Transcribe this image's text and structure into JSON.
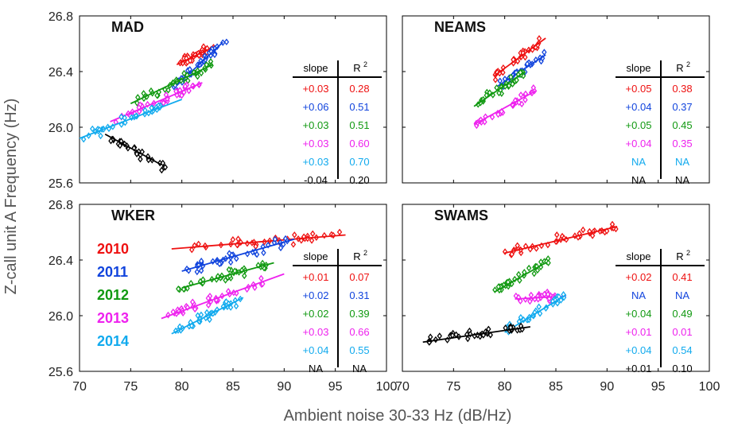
{
  "chart_data": {
    "type": "scatter",
    "xlabel": "Ambient noise 30-33 Hz (dB/Hz)",
    "ylabel": "Z-call unit A Frequency (Hz)",
    "xlim": [
      70,
      100
    ],
    "ylim": [
      25.6,
      26.8
    ],
    "xticks": [
      70,
      75,
      80,
      85,
      90,
      95,
      100
    ],
    "yticks": [
      25.6,
      26.0,
      26.4,
      26.8
    ],
    "xtick_labels": [
      "70",
      "75",
      "80",
      "85",
      "90",
      "95",
      "100"
    ],
    "ytick_labels": [
      "25.6",
      "26.0",
      "26.4",
      "26.8"
    ],
    "grid": false,
    "marker": "diamond",
    "legend": {
      "placement": "left, inside WKER panel",
      "entries": [
        "2010",
        "2011",
        "2012",
        "2013",
        "2014"
      ]
    },
    "table_headers": {
      "slope": "slope",
      "r2": "R",
      "r2_sup": "2"
    },
    "colors": {
      "2010": "#ee1111",
      "2011": "#1144dd",
      "2012": "#119911",
      "2013": "#ee22ee",
      "2014": "#11aaee",
      "2015": "#000000"
    },
    "panels": [
      {
        "title": "MAD",
        "stats": [
          {
            "slope": "+0.03",
            "r2": "0.28"
          },
          {
            "slope": "+0.06",
            "r2": "0.51"
          },
          {
            "slope": "+0.03",
            "r2": "0.51"
          },
          {
            "slope": "+0.03",
            "r2": "0.60"
          },
          {
            "slope": "+0.03",
            "r2": "0.70"
          },
          {
            "slope": "-0.04",
            "r2": "0.20"
          }
        ],
        "series": [
          {
            "key": "2010",
            "fit_x": [
              79.5,
              83.2
            ],
            "fit_y": [
              26.45,
              26.58
            ],
            "x_range": [
              79.5,
              83.2
            ],
            "center_y": 26.52,
            "n": 36
          },
          {
            "key": "2011",
            "fit_x": [
              79.5,
              84.0
            ],
            "fit_y": [
              26.3,
              26.61
            ],
            "x_range": [
              79.0,
              84.5
            ],
            "center_y": 26.44,
            "n": 36
          },
          {
            "key": "2012",
            "fit_x": [
              75.0,
              83.0
            ],
            "fit_y": [
              26.17,
              26.45
            ],
            "x_range": [
              75.5,
              83.0
            ],
            "center_y": 26.3,
            "n": 36
          },
          {
            "key": "2013",
            "fit_x": [
              73.0,
              82.0
            ],
            "fit_y": [
              26.04,
              26.32
            ],
            "x_range": [
              73.5,
              82.0
            ],
            "center_y": 26.18,
            "n": 36
          },
          {
            "key": "2014",
            "fit_x": [
              70.0,
              80.0
            ],
            "fit_y": [
              25.92,
              26.2
            ],
            "x_range": [
              70.2,
              78.0
            ],
            "center_y": 25.98,
            "n": 36
          },
          {
            "key": "2015",
            "fit_x": [
              72.5,
              78.0
            ],
            "fit_y": [
              25.95,
              25.73
            ],
            "x_range": [
              73.0,
              78.5
            ],
            "center_y": 25.83,
            "n": 32
          }
        ]
      },
      {
        "title": "NEAMS",
        "stats": [
          {
            "slope": "+0.05",
            "r2": "0.38"
          },
          {
            "slope": "+0.04",
            "r2": "0.37"
          },
          {
            "slope": "+0.05",
            "r2": "0.45"
          },
          {
            "slope": "+0.04",
            "r2": "0.35"
          },
          {
            "slope": "NA",
            "r2": "NA"
          },
          {
            "slope": "NA",
            "r2": "NA"
          }
        ],
        "series": [
          {
            "key": "2010",
            "fit_x": [
              79.0,
              84.0
            ],
            "fit_y": [
              26.37,
              26.64
            ],
            "x_range": [
              79.0,
              83.5
            ],
            "center_y": 26.5,
            "n": 32
          },
          {
            "key": "2011",
            "fit_x": [
              79.0,
              84.0
            ],
            "fit_y": [
              26.28,
              26.52
            ],
            "x_range": [
              79.5,
              84.0
            ],
            "center_y": 26.4,
            "n": 32
          },
          {
            "key": "2012",
            "fit_x": [
              77.0,
              82.0
            ],
            "fit_y": [
              26.15,
              26.4
            ],
            "x_range": [
              77.0,
              82.0
            ],
            "center_y": 26.27,
            "n": 32
          },
          {
            "key": "2013",
            "fit_x": [
              77.0,
              83.0
            ],
            "fit_y": [
              26.02,
              26.26
            ],
            "x_range": [
              77.0,
              83.0
            ],
            "center_y": 26.12,
            "n": 32
          }
        ]
      },
      {
        "title": "WKER",
        "stats": [
          {
            "slope": "+0.01",
            "r2": "0.07"
          },
          {
            "slope": "+0.02",
            "r2": "0.31"
          },
          {
            "slope": "+0.02",
            "r2": "0.39"
          },
          {
            "slope": "+0.03",
            "r2": "0.66"
          },
          {
            "slope": "+0.04",
            "r2": "0.55"
          },
          {
            "slope": "NA",
            "r2": "NA"
          }
        ],
        "series": [
          {
            "key": "2010",
            "fit_x": [
              79.0,
              96.0
            ],
            "fit_y": [
              26.48,
              26.58
            ],
            "x_range": [
              79.5,
              95.5
            ],
            "center_y": 26.53,
            "n": 38
          },
          {
            "key": "2011",
            "fit_x": [
              80.0,
              91.0
            ],
            "fit_y": [
              26.32,
              26.55
            ],
            "x_range": [
              80.0,
              91.0
            ],
            "center_y": 26.42,
            "n": 38
          },
          {
            "key": "2012",
            "fit_x": [
              80.0,
              89.0
            ],
            "fit_y": [
              26.2,
              26.38
            ],
            "x_range": [
              79.5,
              88.5
            ],
            "center_y": 26.28,
            "n": 38
          },
          {
            "key": "2013",
            "fit_x": [
              78.0,
              90.0
            ],
            "fit_y": [
              25.98,
              26.3
            ],
            "x_range": [
              78.5,
              88.0
            ],
            "center_y": 26.12,
            "n": 38
          },
          {
            "key": "2014",
            "fit_x": [
              79.0,
              86.0
            ],
            "fit_y": [
              25.87,
              26.13
            ],
            "x_range": [
              79.0,
              86.0
            ],
            "center_y": 25.98,
            "n": 38
          }
        ]
      },
      {
        "title": "SWAMS",
        "stats": [
          {
            "slope": "+0.02",
            "r2": "0.41"
          },
          {
            "slope": "NA",
            "r2": "NA"
          },
          {
            "slope": "+0.04",
            "r2": "0.49"
          },
          {
            "slope": "+0.01",
            "r2": "0.01"
          },
          {
            "slope": "+0.04",
            "r2": "0.54"
          },
          {
            "slope": "+0.01",
            "r2": "0.10"
          }
        ],
        "series": [
          {
            "key": "2010",
            "fit_x": [
              80.0,
              91.0
            ],
            "fit_y": [
              26.45,
              26.64
            ],
            "x_range": [
              80.0,
              91.0
            ],
            "center_y": 26.55,
            "n": 40
          },
          {
            "key": "2012",
            "fit_x": [
              79.0,
              84.0
            ],
            "fit_y": [
              26.17,
              26.38
            ],
            "x_range": [
              79.0,
              84.5
            ],
            "center_y": 26.27,
            "n": 34
          },
          {
            "key": "2013",
            "fit_x": [
              81.0,
              86.0
            ],
            "fit_y": [
              26.12,
              26.14
            ],
            "x_range": [
              81.0,
              85.0
            ],
            "center_y": 26.12,
            "n": 30
          },
          {
            "key": "2014",
            "fit_x": [
              80.0,
              86.0
            ],
            "fit_y": [
              25.88,
              26.15
            ],
            "x_range": [
              80.0,
              86.0
            ],
            "center_y": 26.0,
            "n": 34
          },
          {
            "key": "2015",
            "fit_x": [
              72.0,
              82.5
            ],
            "fit_y": [
              25.81,
              25.92
            ],
            "x_range": [
              72.5,
              82.0
            ],
            "center_y": 25.86,
            "n": 40
          }
        ]
      }
    ]
  }
}
